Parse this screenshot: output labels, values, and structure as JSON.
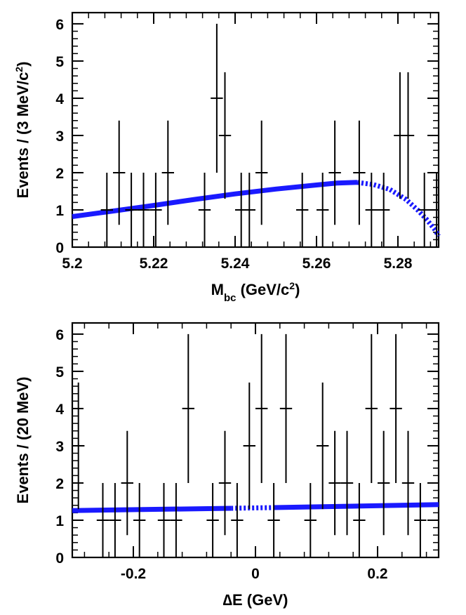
{
  "chart_data": [
    {
      "type": "scatter",
      "name": "mbc",
      "title": "",
      "ylabel_parts": [
        "Events / (3 MeV/c",
        "2",
        ")"
      ],
      "xlabel_parts": [
        "M",
        "bc",
        " (GeV/c",
        "2",
        ")"
      ],
      "xlim": [
        5.2,
        5.29
      ],
      "ylim": [
        0,
        6.3
      ],
      "xticks": [
        5.2,
        5.22,
        5.24,
        5.26,
        5.28
      ],
      "xtick_labels": [
        "5.2",
        "5.22",
        "5.24",
        "5.26",
        "5.28"
      ],
      "yticks": [
        0,
        1,
        2,
        3,
        4,
        5,
        6
      ],
      "ytick_labels": [
        "0",
        "1",
        "2",
        "3",
        "4",
        "5",
        "6"
      ],
      "bin_half_width": 0.0015,
      "points": [
        {
          "x": 5.2085,
          "y": 1,
          "lo": 0,
          "hi": 2
        },
        {
          "x": 5.2115,
          "y": 2,
          "lo": 0.6,
          "hi": 3.4
        },
        {
          "x": 5.2145,
          "y": 1,
          "lo": 0,
          "hi": 2
        },
        {
          "x": 5.2175,
          "y": 1,
          "lo": 0,
          "hi": 2
        },
        {
          "x": 5.2205,
          "y": 1,
          "lo": 0,
          "hi": 2
        },
        {
          "x": 5.2235,
          "y": 2,
          "lo": 0.6,
          "hi": 3.4
        },
        {
          "x": 5.2325,
          "y": 1,
          "lo": 0,
          "hi": 2
        },
        {
          "x": 5.2355,
          "y": 4,
          "lo": 2.0,
          "hi": 6.0
        },
        {
          "x": 5.2375,
          "y": 3,
          "lo": 1.3,
          "hi": 4.7
        },
        {
          "x": 5.2415,
          "y": 1,
          "lo": 0,
          "hi": 2
        },
        {
          "x": 5.2435,
          "y": 1,
          "lo": 0,
          "hi": 2
        },
        {
          "x": 5.2465,
          "y": 2,
          "lo": 0.6,
          "hi": 3.4
        },
        {
          "x": 5.2565,
          "y": 1,
          "lo": 0,
          "hi": 2
        },
        {
          "x": 5.2615,
          "y": 1,
          "lo": 0,
          "hi": 2
        },
        {
          "x": 5.2645,
          "y": 2,
          "lo": 0.6,
          "hi": 3.4
        },
        {
          "x": 5.2705,
          "y": 2,
          "lo": 0.6,
          "hi": 3.4
        },
        {
          "x": 5.2735,
          "y": 1,
          "lo": 0,
          "hi": 2
        },
        {
          "x": 5.2765,
          "y": 1,
          "lo": 0,
          "hi": 2
        },
        {
          "x": 5.2805,
          "y": 3,
          "lo": 1.3,
          "hi": 4.7
        },
        {
          "x": 5.2825,
          "y": 3,
          "lo": 1.3,
          "hi": 4.7
        },
        {
          "x": 5.2865,
          "y": 1,
          "lo": 0,
          "hi": 2
        },
        {
          "x": 5.2895,
          "y": 1,
          "lo": 0,
          "hi": 2
        }
      ],
      "fit_solid": {
        "x": [
          5.2,
          5.21,
          5.22,
          5.23,
          5.24,
          5.25,
          5.26,
          5.265,
          5.27
        ],
        "y": [
          0.82,
          0.97,
          1.12,
          1.28,
          1.43,
          1.56,
          1.67,
          1.72,
          1.74
        ]
      },
      "fit_dashed": {
        "x": [
          5.27,
          5.274,
          5.278,
          5.282,
          5.285,
          5.287,
          5.289,
          5.29
        ],
        "y": [
          1.74,
          1.68,
          1.55,
          1.28,
          0.98,
          0.75,
          0.48,
          0.3
        ]
      }
    },
    {
      "type": "scatter",
      "name": "de",
      "title": "",
      "ylabel_parts": [
        "Events / (20 MeV)"
      ],
      "xlabel_parts": [
        "∆E (GeV)"
      ],
      "xlim": [
        -0.3,
        0.3
      ],
      "ylim": [
        0,
        6.3
      ],
      "xticks": [
        -0.2,
        0,
        0.2
      ],
      "xtick_labels": [
        "-0.2",
        "0",
        "0.2"
      ],
      "yticks": [
        0,
        1,
        2,
        3,
        4,
        5,
        6
      ],
      "ytick_labels": [
        "0",
        "1",
        "2",
        "3",
        "4",
        "5",
        "6"
      ],
      "bin_half_width": 0.01,
      "points": [
        {
          "x": -0.29,
          "y": 3,
          "lo": 1.3,
          "hi": 4.7
        },
        {
          "x": -0.25,
          "y": 1,
          "lo": 0,
          "hi": 2
        },
        {
          "x": -0.23,
          "y": 1,
          "lo": 0,
          "hi": 2
        },
        {
          "x": -0.21,
          "y": 2,
          "lo": 0.6,
          "hi": 3.4
        },
        {
          "x": -0.19,
          "y": 1,
          "lo": 0,
          "hi": 2
        },
        {
          "x": -0.15,
          "y": 1,
          "lo": 0,
          "hi": 2
        },
        {
          "x": -0.13,
          "y": 1,
          "lo": 0,
          "hi": 2
        },
        {
          "x": -0.11,
          "y": 4,
          "lo": 2.0,
          "hi": 6.0
        },
        {
          "x": -0.07,
          "y": 1,
          "lo": 0,
          "hi": 2
        },
        {
          "x": -0.05,
          "y": 2,
          "lo": 0.6,
          "hi": 3.4
        },
        {
          "x": -0.03,
          "y": 1,
          "lo": 0,
          "hi": 2
        },
        {
          "x": -0.01,
          "y": 3,
          "lo": 1.3,
          "hi": 4.7
        },
        {
          "x": 0.01,
          "y": 4,
          "lo": 2.0,
          "hi": 6.0
        },
        {
          "x": 0.03,
          "y": 1,
          "lo": 0,
          "hi": 2
        },
        {
          "x": 0.05,
          "y": 4,
          "lo": 2.0,
          "hi": 6.0
        },
        {
          "x": 0.09,
          "y": 1,
          "lo": 0,
          "hi": 2
        },
        {
          "x": 0.11,
          "y": 3,
          "lo": 1.3,
          "hi": 4.7
        },
        {
          "x": 0.13,
          "y": 2,
          "lo": 0.6,
          "hi": 3.4
        },
        {
          "x": 0.15,
          "y": 2,
          "lo": 0.6,
          "hi": 3.4
        },
        {
          "x": 0.17,
          "y": 1,
          "lo": 0,
          "hi": 2
        },
        {
          "x": 0.19,
          "y": 4,
          "lo": 2.0,
          "hi": 6.0
        },
        {
          "x": 0.21,
          "y": 2,
          "lo": 0.6,
          "hi": 3.4
        },
        {
          "x": 0.23,
          "y": 4,
          "lo": 2.0,
          "hi": 6.0
        },
        {
          "x": 0.25,
          "y": 2,
          "lo": 0.6,
          "hi": 3.4
        },
        {
          "x": 0.27,
          "y": 1,
          "lo": 0,
          "hi": 2
        }
      ],
      "fit_solid": {
        "x": [
          -0.3,
          -0.04
        ],
        "y": [
          1.26,
          1.32
        ]
      },
      "fit_dashed": {
        "x": [
          -0.04,
          0.03
        ],
        "y": [
          1.32,
          1.34
        ]
      },
      "fit_solid2": {
        "x": [
          0.03,
          0.3
        ],
        "y": [
          1.34,
          1.42
        ]
      }
    }
  ],
  "colors": {
    "fit": "#1a1aff",
    "points": "#000000"
  }
}
